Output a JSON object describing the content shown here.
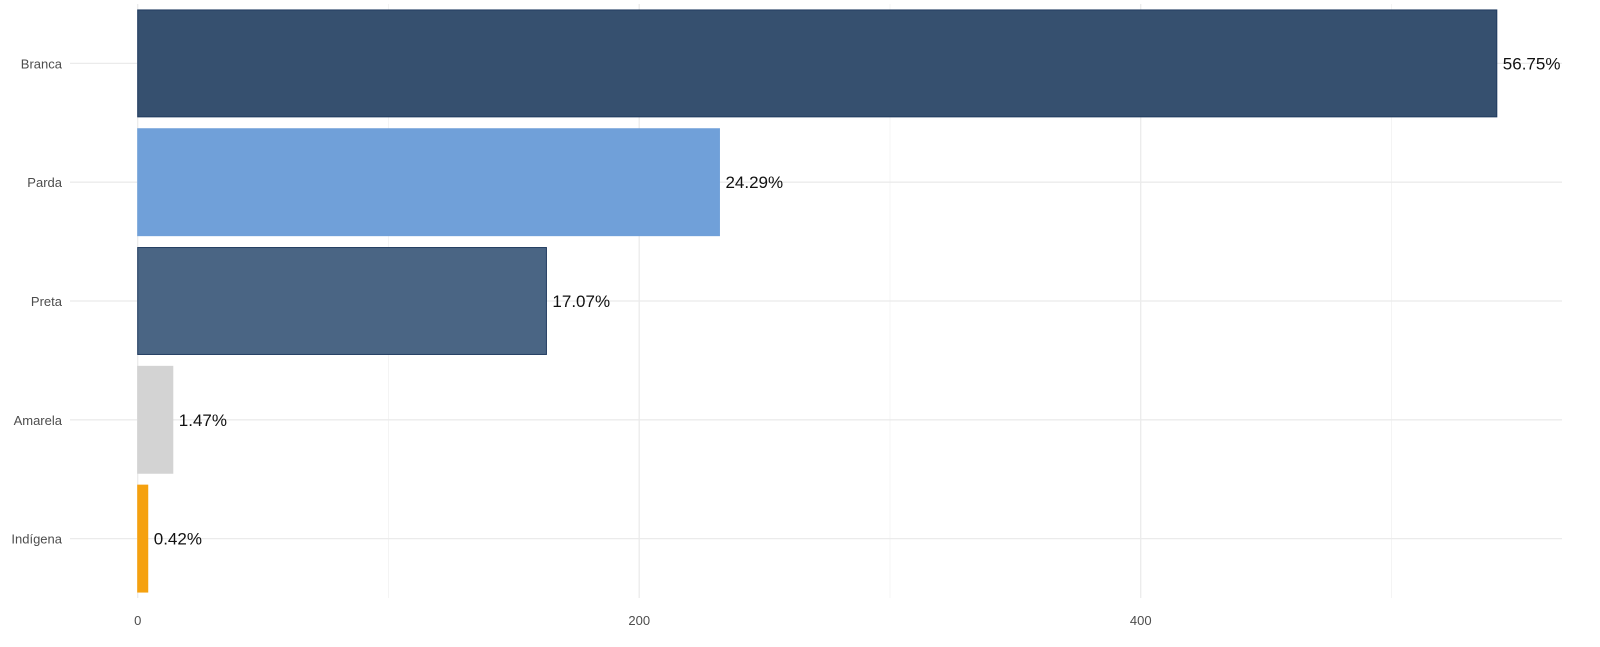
{
  "chart_data": {
    "type": "bar",
    "orientation": "horizontal",
    "categories": [
      "Branca",
      "Parda",
      "Preta",
      "Amarela",
      "Indígena"
    ],
    "values": [
      542,
      232,
      163,
      14,
      4
    ],
    "data_labels": [
      "56.75%",
      "24.29%",
      "17.07%",
      "1.47%",
      "0.42%"
    ],
    "colors": [
      "#36506f",
      "#70a0d9",
      "#4a6584",
      "#d3d3d3",
      "#f5a10f"
    ],
    "bar_stroke_colors": [
      "#1f3a5f",
      "#70a0d9",
      "#1f3a5f",
      "#d3d3d3",
      "#f5a10f"
    ],
    "title": "",
    "xlabel": "",
    "ylabel": "",
    "xlim": [
      -27,
      568
    ],
    "x_ticks": [
      0,
      200,
      400
    ],
    "x_tick_labels": [
      "0",
      "200",
      "400"
    ],
    "x_minor_ticks": [
      100,
      300,
      500
    ],
    "grid": true,
    "legend": "none"
  }
}
